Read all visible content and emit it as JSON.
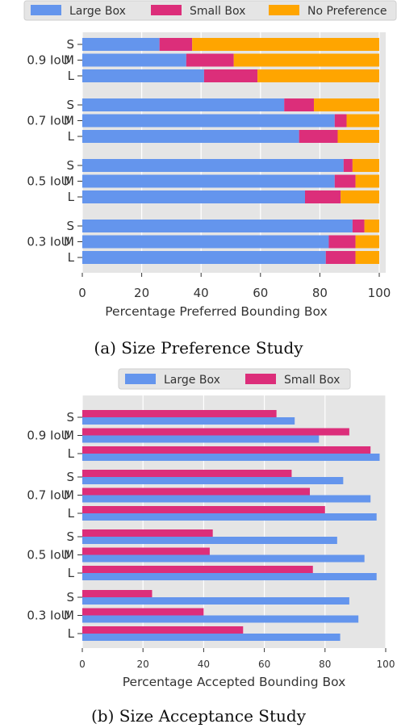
{
  "chart_data": [
    {
      "type": "bar",
      "orientation": "horizontal",
      "stacked": true,
      "caption": "(a) Size Preference Study",
      "xlabel": "Percentage Preferred Bounding Box",
      "xlim": [
        0,
        100
      ],
      "xticks": [
        "0",
        "20",
        "40",
        "60",
        "80",
        "100"
      ],
      "grid": true,
      "legend_position": "top",
      "groups": [
        "0.9 IoU",
        "0.7 IoU",
        "0.5 IoU",
        "0.3 IoU"
      ],
      "sizes": [
        "S",
        "M",
        "L"
      ],
      "series": [
        {
          "name": "Large Box",
          "color": "#6495ED",
          "values": [
            [
              26,
              35,
              41
            ],
            [
              68,
              85,
              73
            ],
            [
              88,
              85,
              75
            ],
            [
              91,
              83,
              82
            ]
          ]
        },
        {
          "name": "Small Box",
          "color": "#DC2E7A",
          "values": [
            [
              11,
              16,
              18
            ],
            [
              10,
              4,
              13
            ],
            [
              3,
              7,
              12
            ],
            [
              4,
              9,
              10
            ]
          ]
        },
        {
          "name": "No Preference",
          "color": "#FFA500",
          "values": [
            [
              63,
              49,
              41
            ],
            [
              22,
              11,
              14
            ],
            [
              9,
              8,
              13
            ],
            [
              5,
              8,
              8
            ]
          ]
        }
      ]
    },
    {
      "type": "bar",
      "orientation": "horizontal",
      "stacked": false,
      "caption": "(b) Size Acceptance Study",
      "xlabel": "Percentage Accepted Bounding Box",
      "xlim": [
        0,
        100
      ],
      "xticks": [
        "0",
        "20",
        "40",
        "60",
        "80",
        "100"
      ],
      "grid": true,
      "legend_position": "top",
      "groups": [
        "0.9 IoU",
        "0.7 IoU",
        "0.5 IoU",
        "0.3 IoU"
      ],
      "sizes": [
        "S",
        "M",
        "L"
      ],
      "series": [
        {
          "name": "Large Box",
          "color": "#6495ED",
          "values": [
            [
              70,
              78,
              98
            ],
            [
              86,
              95,
              97
            ],
            [
              84,
              93,
              97
            ],
            [
              88,
              91,
              85
            ]
          ]
        },
        {
          "name": "Small Box",
          "color": "#DC2E7A",
          "values": [
            [
              64,
              88,
              95
            ],
            [
              69,
              75,
              80
            ],
            [
              43,
              42,
              76
            ],
            [
              23,
              40,
              53
            ]
          ]
        }
      ]
    }
  ]
}
